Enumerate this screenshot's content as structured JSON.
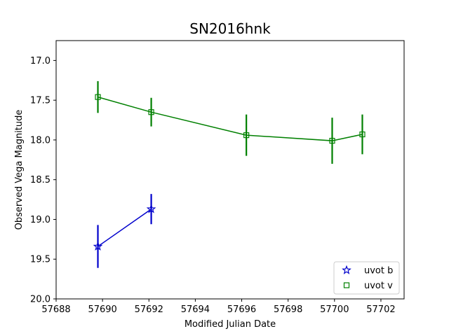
{
  "chart_data": {
    "type": "scatter",
    "title": "SN2016hnk",
    "xlabel": "Modified Julian Date",
    "ylabel": "Observed Vega Magnitude",
    "xlim": [
      57688,
      57703
    ],
    "ylim": [
      20.0,
      16.75
    ],
    "y_inverted": true,
    "grid": false,
    "legend_position": "lower-right",
    "xticks": [
      57688,
      57690,
      57692,
      57694,
      57696,
      57698,
      57700,
      57702
    ],
    "yticks": [
      17.0,
      17.5,
      18.0,
      18.5,
      19.0,
      19.5,
      20.0
    ],
    "xtick_labels": [
      "57688",
      "57690",
      "57692",
      "57694",
      "57696",
      "57698",
      "57700",
      "57702"
    ],
    "ytick_labels": [
      "17.0",
      "17.5",
      "18.0",
      "18.5",
      "19.0",
      "19.5",
      "20.0"
    ],
    "series": [
      {
        "name": "uvot b",
        "color": "#0000cc",
        "marker": "star",
        "x": [
          57689.8,
          57692.1
        ],
        "y": [
          19.34,
          18.87
        ],
        "yerr": [
          0.27,
          0.19
        ]
      },
      {
        "name": "uvot v",
        "color": "#008000",
        "marker": "square",
        "x": [
          57689.8,
          57692.1,
          57696.2,
          57699.9,
          57701.2
        ],
        "y": [
          17.46,
          17.65,
          17.94,
          18.01,
          17.93
        ],
        "yerr": [
          0.2,
          0.18,
          0.26,
          0.29,
          0.25
        ]
      }
    ]
  }
}
